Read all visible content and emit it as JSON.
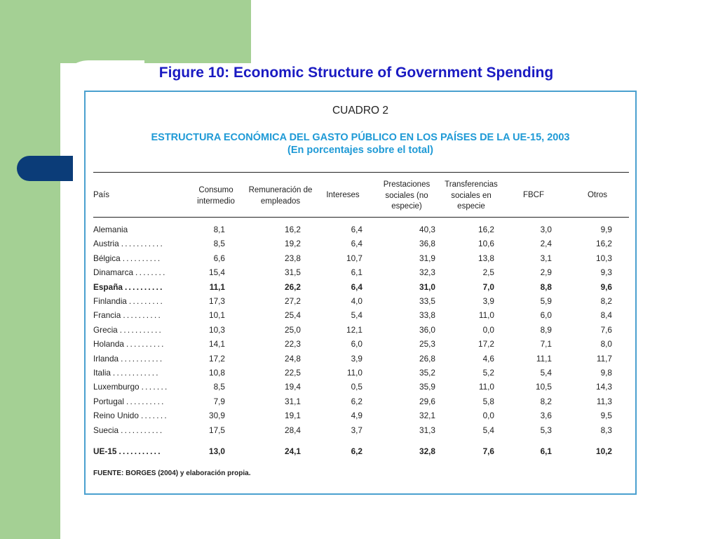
{
  "slide": {
    "title": "Figure 10: Economic Structure of Government Spending"
  },
  "table": {
    "label": "CUADRO 2",
    "heading_line1": "ESTRUCTURA ECONÓMICA DEL GASTO PÚBLICO EN LOS PAÍSES DE LA UE-15, 2003",
    "heading_line2": "(En porcentajes sobre el total)",
    "columns": [
      "País",
      "Consumo intermedio",
      "Remuneración de empleados",
      "Intereses",
      "Prestaciones sociales (no especie)",
      "Transferencias sociales en especie",
      "FBCF",
      "Otros"
    ],
    "rows": [
      {
        "country": "Alemania",
        "dots": "",
        "values": [
          "8,1",
          "16,2",
          "6,4",
          "40,3",
          "16,2",
          "3,0",
          "9,9"
        ],
        "bold": false
      },
      {
        "country": "Austria",
        "dots": "...........",
        "values": [
          "8,5",
          "19,2",
          "6,4",
          "36,8",
          "10,6",
          "2,4",
          "16,2"
        ],
        "bold": false
      },
      {
        "country": "Bélgica",
        "dots": "..........",
        "values": [
          "6,6",
          "23,8",
          "10,7",
          "31,9",
          "13,8",
          "3,1",
          "10,3"
        ],
        "bold": false
      },
      {
        "country": "Dinamarca",
        "dots": "........",
        "values": [
          "15,4",
          "31,5",
          "6,1",
          "32,3",
          "2,5",
          "2,9",
          "9,3"
        ],
        "bold": false
      },
      {
        "country": "España",
        "dots": "..........",
        "values": [
          "11,1",
          "26,2",
          "6,4",
          "31,0",
          "7,0",
          "8,8",
          "9,6"
        ],
        "bold": true
      },
      {
        "country": "Finlandia",
        "dots": ".........",
        "values": [
          "17,3",
          "27,2",
          "4,0",
          "33,5",
          "3,9",
          "5,9",
          "8,2"
        ],
        "bold": false
      },
      {
        "country": "Francia",
        "dots": "..........",
        "values": [
          "10,1",
          "25,4",
          "5,4",
          "33,8",
          "11,0",
          "6,0",
          "8,4"
        ],
        "bold": false
      },
      {
        "country": "Grecia",
        "dots": "...........",
        "values": [
          "10,3",
          "25,0",
          "12,1",
          "36,0",
          "0,0",
          "8,9",
          "7,6"
        ],
        "bold": false
      },
      {
        "country": "Holanda",
        "dots": "..........",
        "values": [
          "14,1",
          "22,3",
          "6,0",
          "25,3",
          "17,2",
          "7,1",
          "8,0"
        ],
        "bold": false
      },
      {
        "country": "Irlanda",
        "dots": "...........",
        "values": [
          "17,2",
          "24,8",
          "3,9",
          "26,8",
          "4,6",
          "11,1",
          "11,7"
        ],
        "bold": false
      },
      {
        "country": "Italia",
        "dots": "............",
        "values": [
          "10,8",
          "22,5",
          "11,0",
          "35,2",
          "5,2",
          "5,4",
          "9,8"
        ],
        "bold": false
      },
      {
        "country": "Luxemburgo",
        "dots": ".......",
        "values": [
          "8,5",
          "19,4",
          "0,5",
          "35,9",
          "11,0",
          "10,5",
          "14,3"
        ],
        "bold": false
      },
      {
        "country": "Portugal",
        "dots": "..........",
        "values": [
          "7,9",
          "31,1",
          "6,2",
          "29,6",
          "5,8",
          "8,2",
          "11,3"
        ],
        "bold": false
      },
      {
        "country": "Reino Unido",
        "dots": ".......",
        "values": [
          "30,9",
          "19,1",
          "4,9",
          "32,1",
          "0,0",
          "3,6",
          "9,5"
        ],
        "bold": false
      },
      {
        "country": "Suecia",
        "dots": "...........",
        "values": [
          "17,5",
          "28,4",
          "3,7",
          "31,3",
          "5,4",
          "5,3",
          "8,3"
        ],
        "bold": false
      }
    ],
    "total_row": {
      "country": "UE-15",
      "dots": "...........",
      "values": [
        "13,0",
        "24,1",
        "6,2",
        "32,8",
        "7,6",
        "6,1",
        "10,2"
      ]
    },
    "footnote": "FUENTE: BORGES (2004) y elaboración propia."
  },
  "colors": {
    "background_green": "#a4d094",
    "accent_navy": "#0b3c78",
    "title_blue": "#1a1ac2",
    "heading_blue": "#1f9ad6",
    "frame_blue": "#4aa0cf"
  }
}
